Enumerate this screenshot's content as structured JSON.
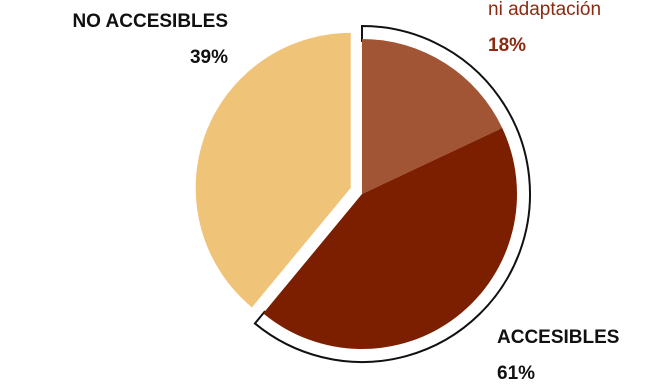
{
  "chart_data": {
    "type": "pie",
    "categories": [
      "ni adaptación",
      null,
      "NO ACCESIBLES"
    ],
    "values": [
      18,
      43,
      39
    ],
    "value_labels": [
      "18%",
      null,
      "39%"
    ],
    "colors": [
      "#a15535",
      "#7b1f00",
      "#f0c478"
    ],
    "group": {
      "name": "ACCESIBLES",
      "value": 61,
      "value_label": "61%"
    }
  }
}
